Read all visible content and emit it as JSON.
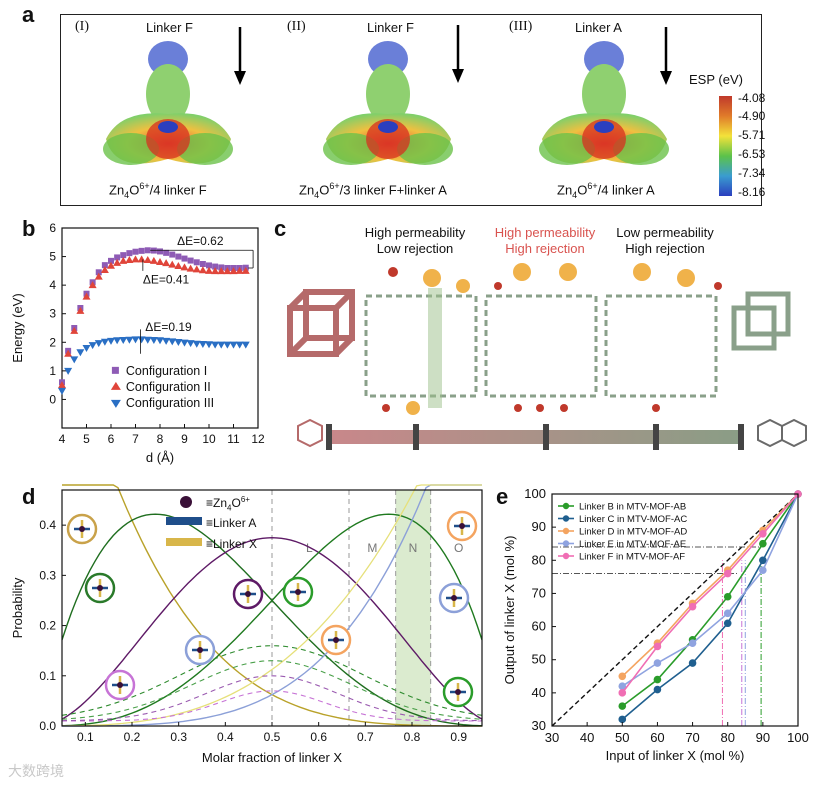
{
  "panel_labels": {
    "a": "a",
    "b": "b",
    "c": "c",
    "d": "d",
    "e": "e"
  },
  "panel_a": {
    "items": [
      {
        "roman": "(I)",
        "top_label": "Linker F",
        "caption_pre": "Zn",
        "sub1": "4",
        "mid": "O",
        "sup": "6+",
        "caption_post": "/4 linker F"
      },
      {
        "roman": "(II)",
        "top_label": "Linker F",
        "caption_pre": "Zn",
        "sub1": "4",
        "mid": "O",
        "sup": "6+",
        "caption_post": "/3 linker F+linker A"
      },
      {
        "roman": "(III)",
        "top_label": "Linker A",
        "caption_pre": "Zn",
        "sub1": "4",
        "mid": "O",
        "sup": "6+",
        "caption_post": "/4 linker A"
      }
    ],
    "colorbar_title": "ESP (eV)",
    "colorbar_ticks": [
      "-4.08",
      "-4.90",
      "-5.71",
      "-6.53",
      "-7.34",
      "-8.16"
    ],
    "colors": {
      "red": "#d7301f",
      "green": "#6cc24a",
      "blue": "#2b3fbf"
    }
  },
  "panel_c": {
    "columns": [
      {
        "line1": "High permeability",
        "line2": "Low rejection",
        "color": "#222222"
      },
      {
        "line1": "High permeability",
        "line2": "High rejection",
        "color": "#d9534f"
      },
      {
        "line1": "Low permeability",
        "line2": "High rejection",
        "color": "#222222"
      }
    ]
  },
  "chart_data": [
    {
      "panel": "b",
      "type": "scatter",
      "xlabel": "d (Å)",
      "ylabel": "Energy (eV)",
      "xlim": [
        4,
        12
      ],
      "ylim": [
        -1,
        6
      ],
      "xticks": [
        "4",
        "5",
        "6",
        "7",
        "8",
        "9",
        "10",
        "11",
        "12"
      ],
      "yticks": [
        "0",
        "1",
        "2",
        "3",
        "4",
        "5",
        "6"
      ],
      "annotations": [
        "ΔE=0.62",
        "ΔE=0.41",
        "ΔE=0.19"
      ],
      "series": [
        {
          "name": "Configuration I",
          "color": "#8e5bb5",
          "marker": "square",
          "x": [
            4.0,
            4.25,
            4.5,
            4.75,
            5.0,
            5.25,
            5.5,
            5.75,
            6.0,
            6.25,
            6.5,
            6.75,
            7.0,
            7.25,
            7.5,
            7.75,
            8.0,
            8.25,
            8.5,
            8.75,
            9.0,
            9.25,
            9.5,
            9.75,
            10.0,
            10.25,
            10.5,
            10.75,
            11.0,
            11.25,
            11.5
          ],
          "y": [
            0.6,
            1.7,
            2.5,
            3.2,
            3.7,
            4.1,
            4.45,
            4.7,
            4.85,
            4.97,
            5.05,
            5.12,
            5.17,
            5.2,
            5.22,
            5.21,
            5.18,
            5.13,
            5.07,
            5.0,
            4.93,
            4.86,
            4.8,
            4.74,
            4.69,
            4.65,
            4.62,
            4.6,
            4.6,
            4.6,
            4.61
          ]
        },
        {
          "name": "Configuration II",
          "color": "#e0453a",
          "marker": "triangle-up",
          "x": [
            4.0,
            4.25,
            4.5,
            4.75,
            5.0,
            5.25,
            5.5,
            5.75,
            6.0,
            6.25,
            6.5,
            6.75,
            7.0,
            7.25,
            7.5,
            7.75,
            8.0,
            8.25,
            8.5,
            8.75,
            9.0,
            9.25,
            9.5,
            9.75,
            10.0,
            10.25,
            10.5,
            10.75,
            11.0,
            11.25,
            11.5
          ],
          "y": [
            0.5,
            1.6,
            2.4,
            3.1,
            3.6,
            4.0,
            4.3,
            4.53,
            4.68,
            4.78,
            4.85,
            4.88,
            4.9,
            4.9,
            4.88,
            4.85,
            4.81,
            4.77,
            4.72,
            4.67,
            4.62,
            4.58,
            4.55,
            4.52,
            4.5,
            4.49,
            4.49,
            4.49,
            4.49,
            4.5,
            4.5
          ]
        },
        {
          "name": "Configuration III",
          "color": "#2a6fc4",
          "marker": "triangle-down",
          "x": [
            4.0,
            4.25,
            4.5,
            4.75,
            5.0,
            5.25,
            5.5,
            5.75,
            6.0,
            6.25,
            6.5,
            6.75,
            7.0,
            7.25,
            7.5,
            7.75,
            8.0,
            8.25,
            8.5,
            8.75,
            9.0,
            9.25,
            9.5,
            9.75,
            10.0,
            10.25,
            10.5,
            10.75,
            11.0,
            11.25,
            11.5
          ],
          "y": [
            0.3,
            1.0,
            1.4,
            1.65,
            1.8,
            1.9,
            1.97,
            2.02,
            2.05,
            2.07,
            2.08,
            2.09,
            2.1,
            2.1,
            2.09,
            2.08,
            2.07,
            2.05,
            2.03,
            2.01,
            1.99,
            1.97,
            1.95,
            1.94,
            1.93,
            1.92,
            1.92,
            1.92,
            1.92,
            1.92,
            1.92
          ]
        }
      ]
    },
    {
      "panel": "d",
      "type": "line",
      "xlabel": "Molar fraction of linker X",
      "ylabel": "Probability",
      "xlim": [
        0.05,
        0.95
      ],
      "ylim": [
        0,
        0.47
      ],
      "xticks": [
        "0.1",
        "0.2",
        "0.3",
        "0.4",
        "0.5",
        "0.6",
        "0.7",
        "0.8",
        "0.9"
      ],
      "yticks": [
        "0.0",
        "0.1",
        "0.2",
        "0.3",
        "0.4"
      ],
      "region_labels": [
        "L",
        "M",
        "N",
        "O"
      ],
      "legend": [
        {
          "label_pre": "≡Zn",
          "sub": "4",
          "mid": "O",
          "sup": "6+",
          "kind": "zn"
        },
        {
          "label": "≡Linker A",
          "kind": "linkerA"
        },
        {
          "label": "≡Linker X",
          "kind": "linkerX"
        }
      ],
      "series": [
        {
          "name": "n=0",
          "color": "#b9a22a",
          "k": 0
        },
        {
          "name": "n=1",
          "color": "#1f6e1f",
          "k": 1
        },
        {
          "name": "n=2",
          "color": "#5e1a66",
          "k": 2
        },
        {
          "name": "n=3",
          "color": "#1f7a1f",
          "k": 3
        },
        {
          "name": "n=4",
          "color": "#8ca0d8",
          "k": 4
        },
        {
          "name": "n=5",
          "color": "#e6e07a",
          "k": 5
        }
      ]
    },
    {
      "panel": "e",
      "type": "line",
      "xlabel": "Input of linker X (mol %)",
      "ylabel": "Output of linker X (mol %)",
      "xlim": [
        30,
        100
      ],
      "ylim": [
        30,
        100
      ],
      "xticks": [
        "30",
        "40",
        "50",
        "60",
        "70",
        "80",
        "90",
        "100"
      ],
      "yticks": [
        "30",
        "40",
        "50",
        "60",
        "70",
        "80",
        "90",
        "100"
      ],
      "series": [
        {
          "name": "Linker B in MTV-MOF-AB",
          "color": "#2a9c2a",
          "x": [
            50,
            60,
            70,
            80,
            90,
            100
          ],
          "y": [
            36,
            44,
            56,
            69,
            85,
            100
          ]
        },
        {
          "name": "Linker C in MTV-MOF-AC",
          "color": "#1f5f8f",
          "x": [
            50,
            60,
            70,
            80,
            90,
            100
          ],
          "y": [
            32,
            41,
            49,
            61,
            80,
            100
          ]
        },
        {
          "name": "Linker D in MTV-MOF-AD",
          "color": "#f4a460",
          "x": [
            50,
            60,
            70,
            80,
            90,
            100
          ],
          "y": [
            45,
            55,
            67,
            77,
            89,
            100
          ]
        },
        {
          "name": "Linker E in MTV-MOF-AE",
          "color": "#8fa3e0",
          "x": [
            50,
            60,
            70,
            80,
            90,
            100
          ],
          "y": [
            42,
            49,
            55,
            64,
            77,
            100
          ]
        },
        {
          "name": "Linker F in MTV-MOF-AF",
          "color": "#f06eb4",
          "x": [
            50,
            60,
            70,
            80,
            90,
            100
          ],
          "y": [
            40,
            54,
            66,
            76,
            88,
            100
          ]
        }
      ]
    }
  ],
  "watermark": "大数跨境"
}
